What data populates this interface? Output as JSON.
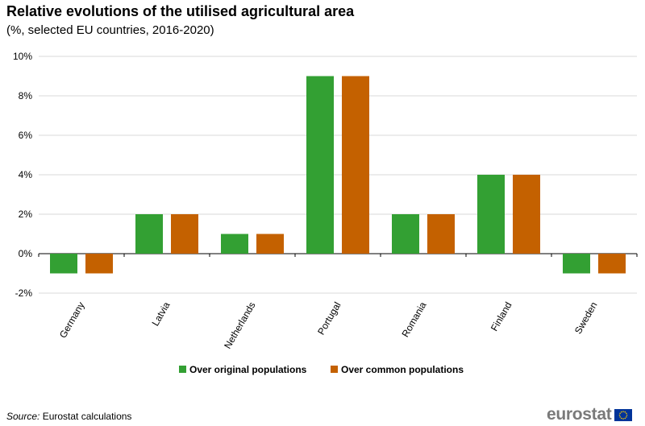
{
  "chart_data": {
    "type": "bar",
    "title": "Relative evolutions of the utilised agricultural area",
    "subtitle": "(%, selected EU countries, 2016-2020)",
    "categories": [
      "Germany",
      "Latvia",
      "Netherlands",
      "Portugal",
      "Romania",
      "Finland",
      "Sweden"
    ],
    "series": [
      {
        "name": "Over original populations",
        "values": [
          -1,
          2,
          1,
          9,
          2,
          4,
          -1
        ],
        "color": "#33a033"
      },
      {
        "name": "Over common populations",
        "values": [
          -1,
          2,
          1,
          9,
          2,
          4,
          -1
        ],
        "color": "#c46100"
      }
    ],
    "ylim": [
      -2,
      10
    ],
    "yticks": [
      -2,
      0,
      2,
      4,
      6,
      8,
      10
    ],
    "ytick_suffix": "%",
    "grid": true,
    "legend_position": "bottom"
  },
  "source": {
    "label": "Source:",
    "text": "Eurostat calculations"
  },
  "logo": {
    "text": "eurostat"
  },
  "icons": {
    "flag": "eu-flag-icon"
  }
}
